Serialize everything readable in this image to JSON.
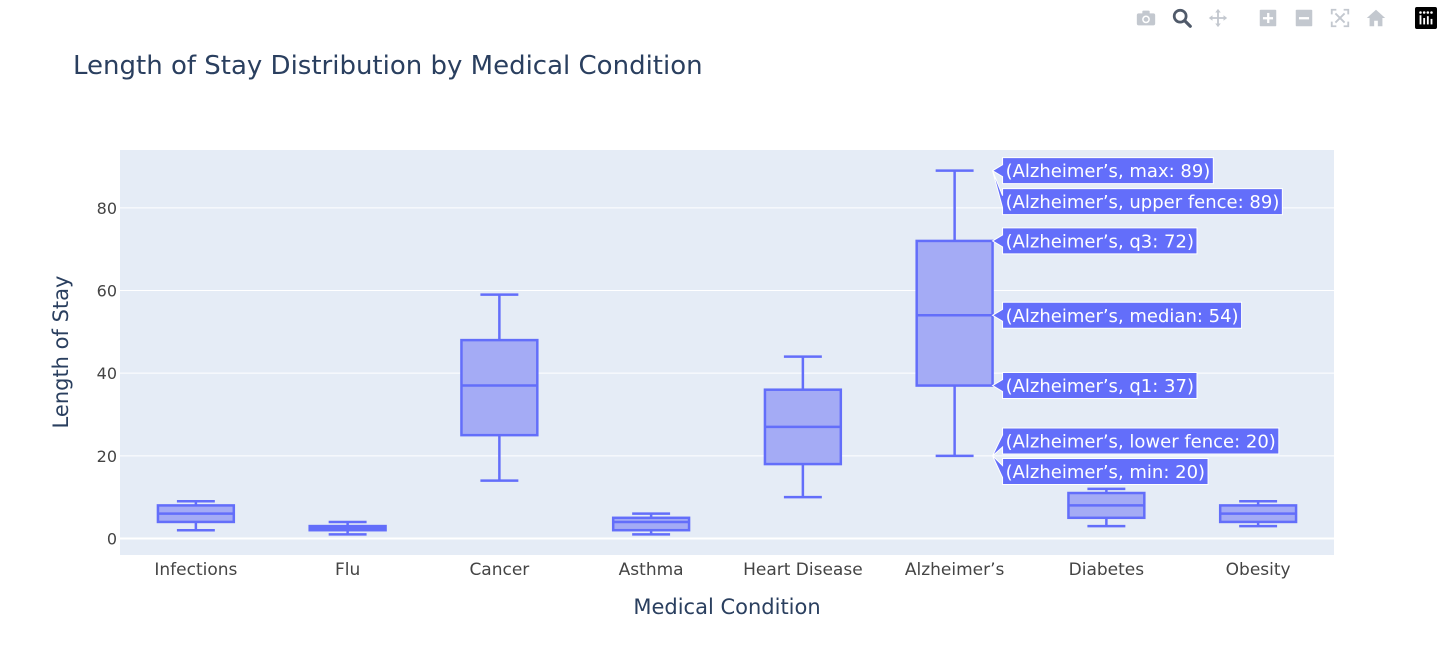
{
  "modebar": {
    "buttons": [
      {
        "name": "camera-icon"
      },
      {
        "name": "zoom-icon"
      },
      {
        "name": "pan-icon"
      },
      {
        "name": "zoom-in-icon"
      },
      {
        "name": "zoom-out-icon"
      },
      {
        "name": "autoscale-icon"
      },
      {
        "name": "home-icon"
      },
      {
        "name": "plotly-logo-icon"
      }
    ]
  },
  "colors": {
    "plot_bg": "#e5ecf6",
    "box_line": "#636efa",
    "box_fill": "#a4abf5",
    "hover_bg": "#636efa",
    "text": "#2a3f5f",
    "tick_text": "#444444",
    "grid": "#ffffff"
  },
  "chart_data": {
    "type": "box",
    "title": "Length of Stay Distribution by Medical Condition",
    "xlabel": "Medical Condition",
    "ylabel": "Length of Stay",
    "ylim": [
      -4,
      94
    ],
    "yticks": [
      0,
      20,
      40,
      60,
      80
    ],
    "categories": [
      "Infections",
      "Flu",
      "Cancer",
      "Asthma",
      "Heart Disease",
      "Alzheimer’s",
      "Diabetes",
      "Obesity"
    ],
    "boxes": [
      {
        "name": "Infections",
        "min": 2,
        "q1": 4,
        "median": 6,
        "q3": 8,
        "max": 9
      },
      {
        "name": "Flu",
        "min": 1,
        "q1": 2,
        "median": 2.5,
        "q3": 3,
        "max": 4
      },
      {
        "name": "Cancer",
        "min": 14,
        "q1": 25,
        "median": 37,
        "q3": 48,
        "max": 59
      },
      {
        "name": "Asthma",
        "min": 1,
        "q1": 2,
        "median": 4,
        "q3": 5,
        "max": 6
      },
      {
        "name": "Heart Disease",
        "min": 10,
        "q1": 18,
        "median": 27,
        "q3": 36,
        "max": 44
      },
      {
        "name": "Alzheimer’s",
        "min": 20,
        "q1": 37,
        "median": 54,
        "q3": 72,
        "max": 89
      },
      {
        "name": "Diabetes",
        "min": 3,
        "q1": 5,
        "median": 8,
        "q3": 11,
        "max": 12
      },
      {
        "name": "Obesity",
        "min": 3,
        "q1": 4,
        "median": 6,
        "q3": 8,
        "max": 9
      }
    ],
    "hover": {
      "category": "Alzheimer’s",
      "labels": [
        {
          "text": "(Alzheimer’s, max: 89)",
          "anchor": 89,
          "label_y": 89
        },
        {
          "text": "(Alzheimer’s, upper fence: 89)",
          "anchor": 89,
          "label_y": 81.5
        },
        {
          "text": "(Alzheimer’s, q3: 72)",
          "anchor": 72,
          "label_y": 72
        },
        {
          "text": "(Alzheimer’s, median: 54)",
          "anchor": 54,
          "label_y": 54
        },
        {
          "text": "(Alzheimer’s, q1: 37)",
          "anchor": 37,
          "label_y": 37
        },
        {
          "text": "(Alzheimer’s, lower fence: 20)",
          "anchor": 20,
          "label_y": 23.6
        },
        {
          "text": "(Alzheimer’s, min: 20)",
          "anchor": 20,
          "label_y": 16.2
        }
      ]
    }
  }
}
